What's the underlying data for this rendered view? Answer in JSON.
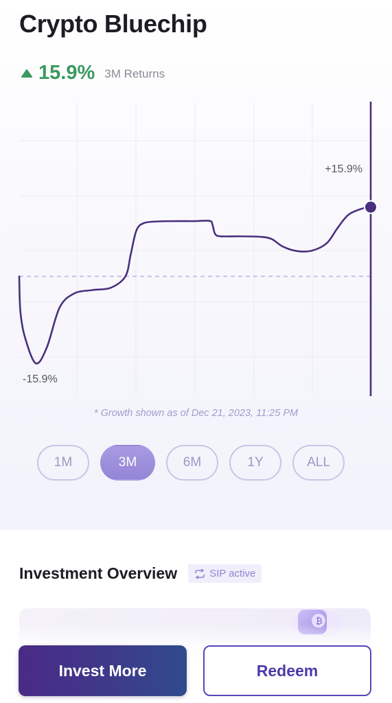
{
  "fund": {
    "title": "Crypto Bluechip",
    "returns_value": "15.9%",
    "returns_label": "3M Returns",
    "returns_direction": "up"
  },
  "chart_data": {
    "type": "line",
    "series_color": "#4a2f7e",
    "grid": true,
    "baseline_style": "dashed",
    "baseline_color": "#b9b0e6",
    "y_range": [
      -15.9,
      15.9
    ],
    "baseline_value": 0,
    "annotations": {
      "max_label": "+15.9%",
      "min_label": "-15.9%"
    },
    "points": [
      [
        0.0,
        0.0
      ],
      [
        0.3,
        -6.0
      ],
      [
        1.5,
        -10.5
      ],
      [
        4.5,
        -15.2
      ],
      [
        7.5,
        -12.5
      ],
      [
        11.0,
        -5.5
      ],
      [
        15.0,
        -3.0
      ],
      [
        20.0,
        -2.4
      ],
      [
        25.0,
        -2.0
      ],
      [
        29.0,
        0.0
      ],
      [
        30.5,
        4.0
      ],
      [
        32.0,
        8.0
      ],
      [
        34.0,
        9.3
      ],
      [
        38.0,
        9.6
      ],
      [
        43.0,
        9.65
      ],
      [
        48.0,
        9.65
      ],
      [
        52.0,
        9.7
      ],
      [
        52.8,
        9.0
      ],
      [
        53.5,
        7.4
      ],
      [
        55.0,
        7.0
      ],
      [
        60.0,
        7.0
      ],
      [
        66.0,
        6.9
      ],
      [
        69.0,
        6.5
      ],
      [
        72.0,
        5.2
      ],
      [
        76.0,
        4.4
      ],
      [
        80.0,
        4.5
      ],
      [
        84.0,
        5.8
      ],
      [
        87.0,
        8.5
      ],
      [
        90.0,
        10.8
      ],
      [
        94.0,
        11.9
      ],
      [
        96.0,
        12.1
      ]
    ]
  },
  "growth_note": "* Growth shown as of Dec 21, 2023, 11:25 PM",
  "range_tabs": [
    {
      "label": "1M",
      "active": false
    },
    {
      "label": "3M",
      "active": true
    },
    {
      "label": "6M",
      "active": false
    },
    {
      "label": "1Y",
      "active": false
    },
    {
      "label": "ALL",
      "active": false
    }
  ],
  "overview": {
    "title": "Investment Overview",
    "badge_label": "SIP active",
    "badge_icon": "repeat-icon"
  },
  "actions": {
    "invest_label": "Invest More",
    "redeem_label": "Redeem"
  },
  "colors": {
    "returns_green": "#3a9960",
    "brand_purple": "#4a2a86",
    "active_tab": "#9c8ee0"
  }
}
